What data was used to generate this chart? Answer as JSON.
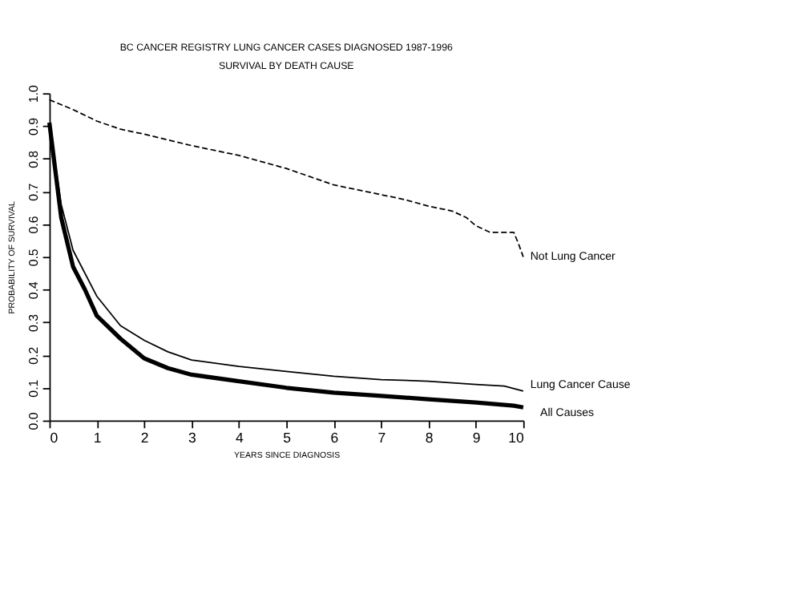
{
  "chart_data": {
    "type": "line",
    "title": "BC CANCER REGISTRY LUNG CANCER CASES DIAGNOSED 1987-1996",
    "subtitle": "SURVIVAL BY DEATH CAUSE",
    "xlabel": "YEARS SINCE DIAGNOSIS",
    "ylabel": "PROBABILITY OF SURVIVAL",
    "xlim": [
      0,
      10
    ],
    "xticks": [
      0,
      1,
      2,
      3,
      4,
      5,
      6,
      7,
      8,
      9,
      10
    ],
    "ylim": [
      0,
      1
    ],
    "yticks": [
      {
        "value": 0,
        "label": "0.0"
      },
      0.1,
      0.2,
      0.3,
      0.4,
      0.5,
      0.6,
      0.7,
      0.8,
      0.9,
      {
        "value": 1,
        "label": "1.0"
      }
    ],
    "grid": false,
    "marker": "none",
    "series": [
      {
        "name": "Not Lung Cancer",
        "color": "#000000",
        "line_style": "dashed",
        "x": [
          0,
          0.5,
          1,
          1.5,
          2,
          3,
          4,
          5,
          6,
          7,
          7.5,
          8,
          8.5,
          8.8,
          9,
          9.3,
          9.8,
          9.9,
          10
        ],
        "values": [
          0.98,
          0.95,
          0.915,
          0.89,
          0.875,
          0.84,
          0.81,
          0.77,
          0.72,
          0.69,
          0.675,
          0.655,
          0.64,
          0.62,
          0.595,
          0.575,
          0.575,
          0.54,
          0.5
        ]
      },
      {
        "name": "Lung Cancer Cause",
        "color": "#000000",
        "line_style": "solid",
        "x": [
          0,
          0.25,
          0.5,
          1,
          1.5,
          2,
          2.5,
          3,
          4,
          5,
          6,
          7,
          8,
          9,
          9.6,
          10
        ],
        "values": [
          0.91,
          0.66,
          0.52,
          0.38,
          0.29,
          0.245,
          0.21,
          0.185,
          0.165,
          0.15,
          0.135,
          0.125,
          0.12,
          0.11,
          0.105,
          0.09
        ]
      },
      {
        "name": "All Causes",
        "color": "#000000",
        "line_style": "solid",
        "x": [
          0,
          0.25,
          0.5,
          0.75,
          1,
          1.5,
          2,
          2.5,
          3,
          4,
          5,
          6,
          7,
          8,
          9,
          9.8,
          10
        ],
        "values": [
          0.91,
          0.62,
          0.47,
          0.4,
          0.32,
          0.25,
          0.19,
          0.16,
          0.14,
          0.12,
          0.1,
          0.085,
          0.075,
          0.065,
          0.055,
          0.045,
          0.04
        ]
      }
    ]
  }
}
